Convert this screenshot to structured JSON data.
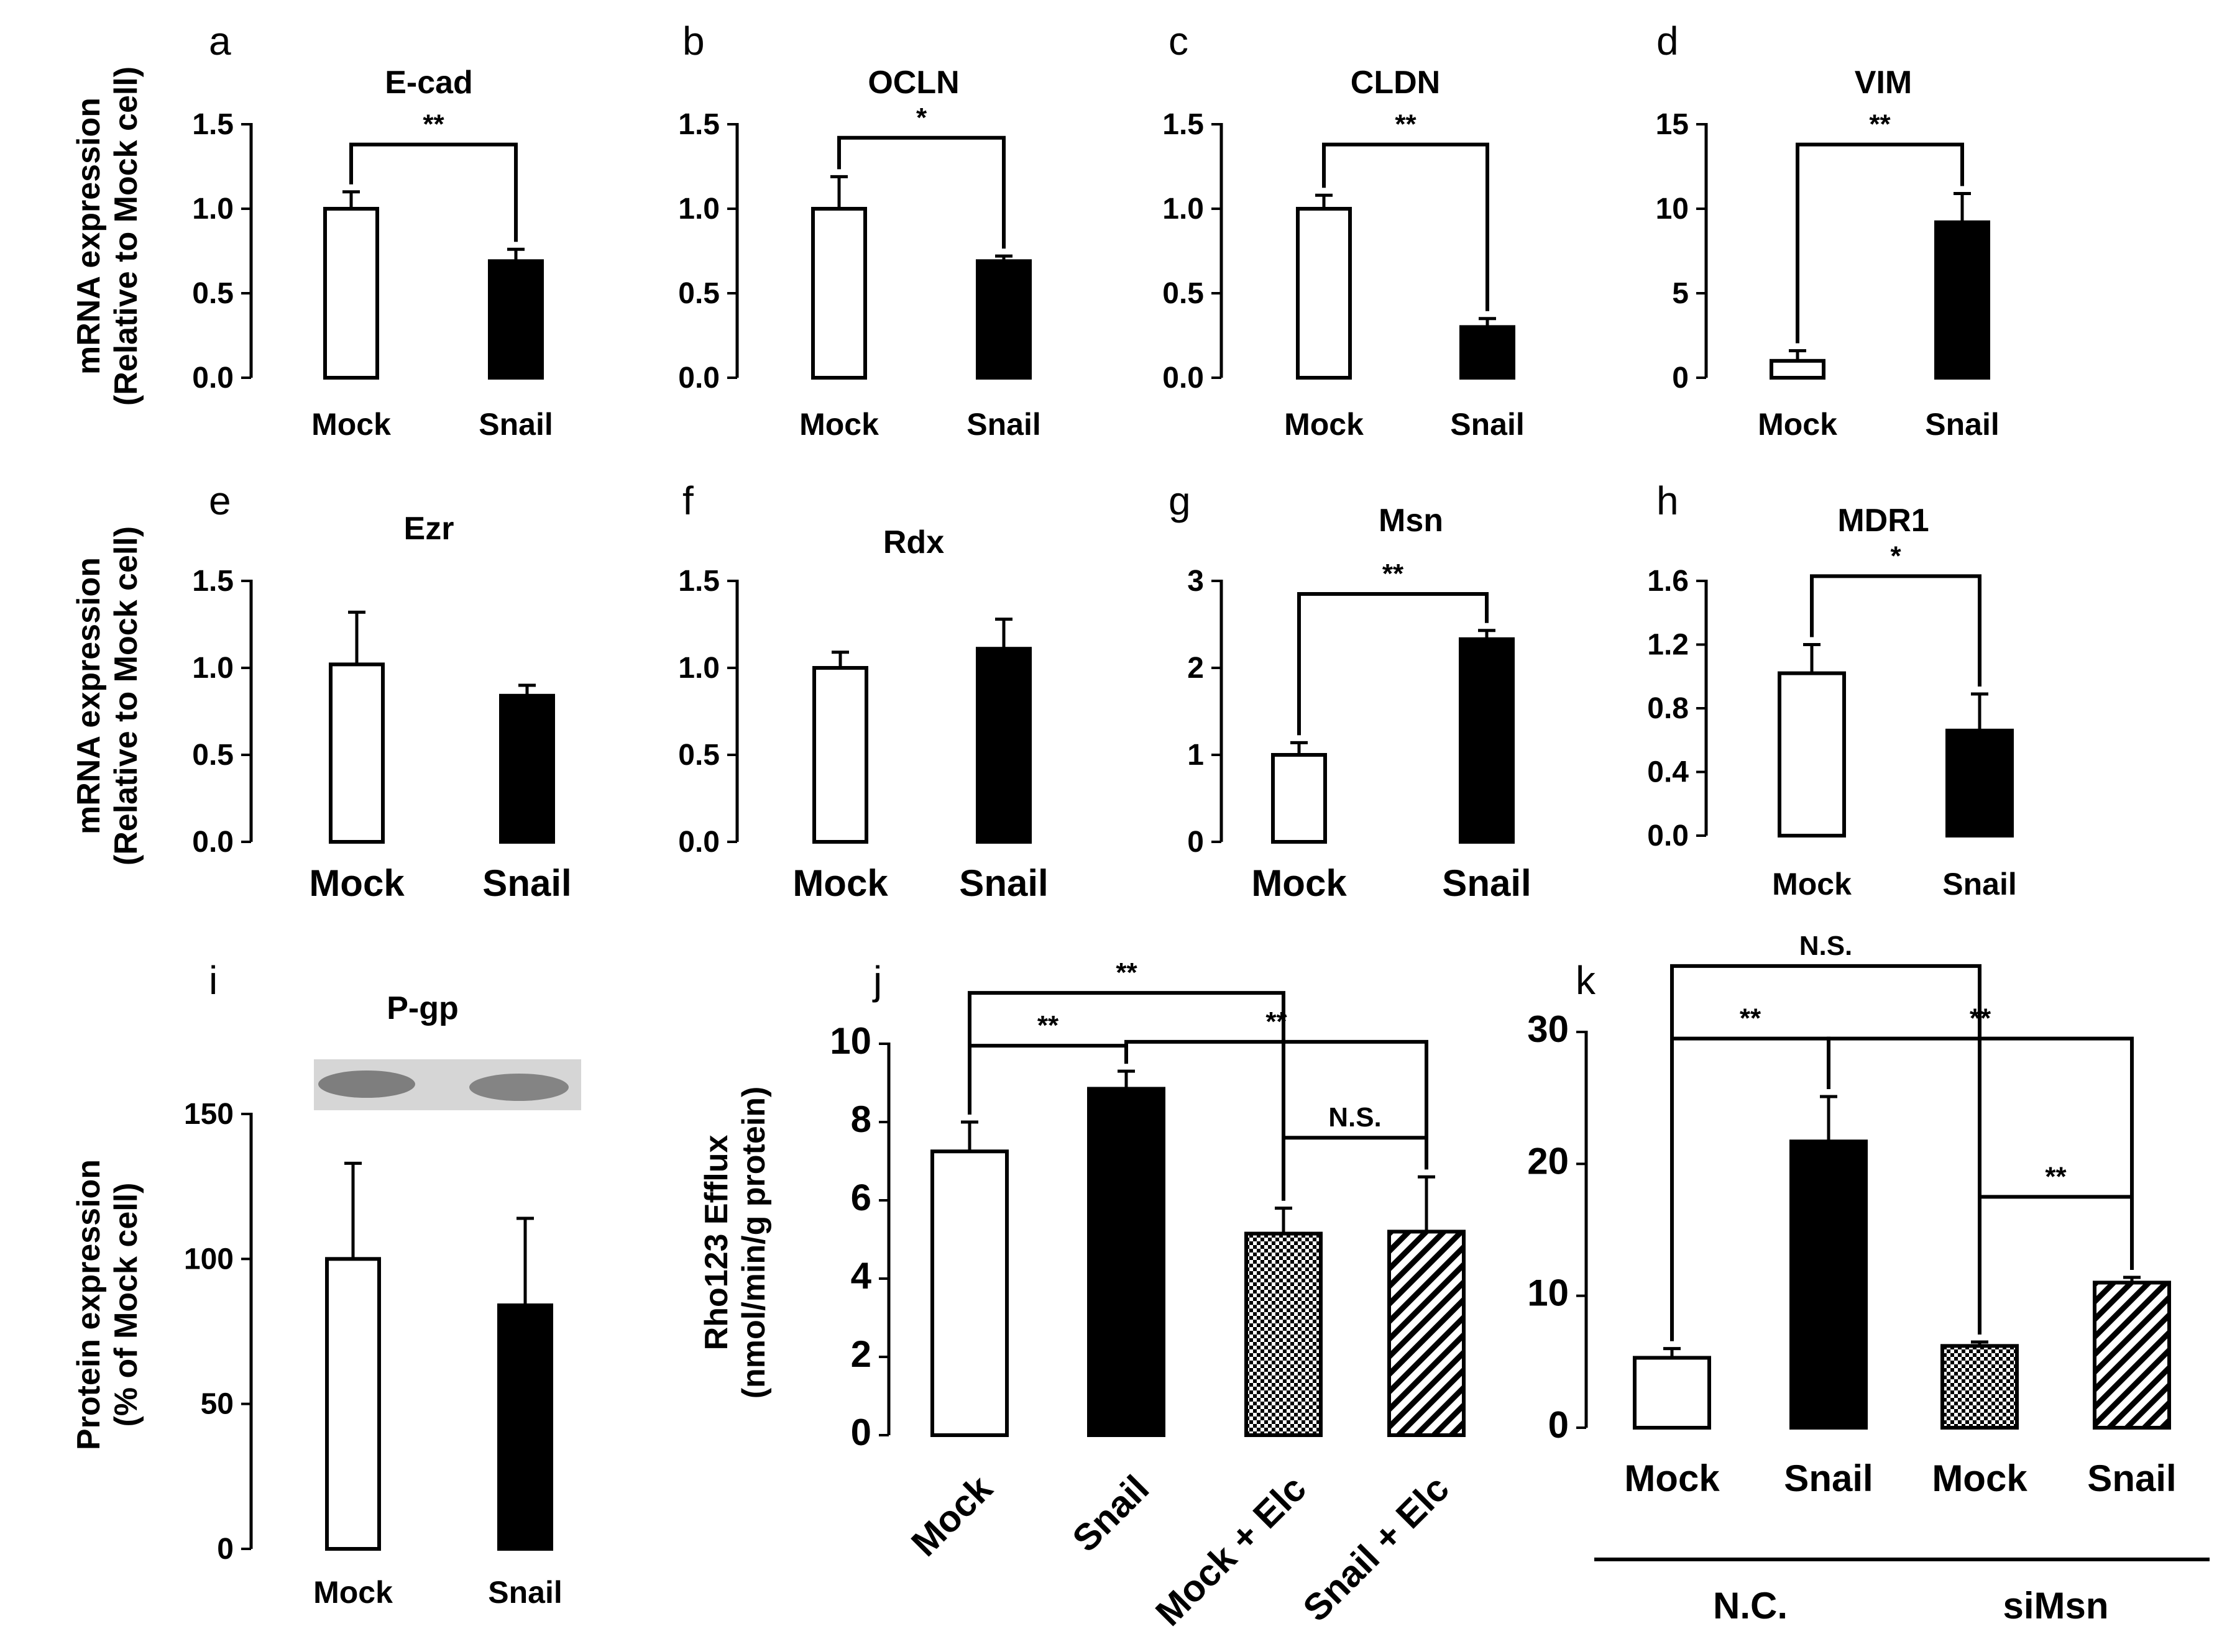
{
  "chart_data": [
    {
      "id": "a",
      "panel_label": "a",
      "type": "bar",
      "title": "E-cad",
      "ylabel": [
        "mRNA expression",
        "(Relative to Mock cell)"
      ],
      "yticks": [
        "0.0",
        "0.5",
        "1.0",
        "1.5"
      ],
      "ylim": [
        0,
        1.5
      ],
      "categories": [
        "Mock",
        "Snail"
      ],
      "fills": [
        "white",
        "black"
      ],
      "values": [
        1.0,
        0.69
      ],
      "errors": [
        0.1,
        0.07
      ],
      "significance": [
        {
          "from": 0,
          "to": 1,
          "label": "**",
          "y": 1.38
        }
      ]
    },
    {
      "id": "b",
      "panel_label": "b",
      "type": "bar",
      "title": "OCLN",
      "ylabel": null,
      "yticks": [
        "0.0",
        "0.5",
        "1.0",
        "1.5"
      ],
      "ylim": [
        0,
        1.5
      ],
      "categories": [
        "Mock",
        "Snail"
      ],
      "fills": [
        "white",
        "black"
      ],
      "values": [
        1.0,
        0.69
      ],
      "errors": [
        0.19,
        0.03
      ],
      "significance": [
        {
          "from": 0,
          "to": 1,
          "label": "*",
          "y": 1.42
        }
      ]
    },
    {
      "id": "c",
      "panel_label": "c",
      "type": "bar",
      "title": "CLDN",
      "ylabel": null,
      "yticks": [
        "0.0",
        "0.5",
        "1.0",
        "1.5"
      ],
      "ylim": [
        0,
        1.5
      ],
      "categories": [
        "Mock",
        "Snail"
      ],
      "fills": [
        "white",
        "black"
      ],
      "values": [
        1.0,
        0.3
      ],
      "errors": [
        0.08,
        0.05
      ],
      "significance": [
        {
          "from": 0,
          "to": 1,
          "label": "**",
          "y": 1.38
        }
      ]
    },
    {
      "id": "d",
      "panel_label": "d",
      "type": "bar",
      "title": "VIM",
      "ylabel": null,
      "yticks": [
        "0",
        "5",
        "10",
        "15"
      ],
      "ylim": [
        0,
        15
      ],
      "categories": [
        "Mock",
        "Snail"
      ],
      "fills": [
        "white",
        "black"
      ],
      "values": [
        1.0,
        9.2
      ],
      "errors": [
        0.6,
        1.7
      ],
      "significance": [
        {
          "from": 0,
          "to": 1,
          "label": "**",
          "y": 13.8
        }
      ]
    },
    {
      "id": "e",
      "panel_label": "e",
      "type": "bar",
      "title": "Ezr",
      "ylabel": [
        "mRNA expression",
        "(Relative to Mock cell)"
      ],
      "yticks": [
        "0.0",
        "0.5",
        "1.0",
        "1.5"
      ],
      "ylim": [
        0,
        1.5
      ],
      "categories": [
        "Mock",
        "Snail"
      ],
      "fills": [
        "white",
        "black"
      ],
      "values": [
        1.02,
        0.84
      ],
      "errors": [
        0.3,
        0.06
      ],
      "significance": []
    },
    {
      "id": "f",
      "panel_label": "f",
      "type": "bar",
      "title": "Rdx",
      "ylabel": null,
      "yticks": [
        "0.0",
        "0.5",
        "1.0",
        "1.5"
      ],
      "ylim": [
        0,
        1.5
      ],
      "categories": [
        "Mock",
        "Snail"
      ],
      "fills": [
        "white",
        "black"
      ],
      "values": [
        1.0,
        1.11
      ],
      "errors": [
        0.09,
        0.17
      ],
      "significance": []
    },
    {
      "id": "g",
      "panel_label": "g",
      "type": "bar",
      "title": "Msn",
      "ylabel": null,
      "yticks": [
        "0",
        "1",
        "2",
        "3"
      ],
      "ylim": [
        0,
        3
      ],
      "categories": [
        "Mock",
        "Snail"
      ],
      "fills": [
        "white",
        "black"
      ],
      "values": [
        1.0,
        2.33
      ],
      "errors": [
        0.14,
        0.1
      ],
      "significance": [
        {
          "from": 0,
          "to": 1,
          "label": "**",
          "y": 2.85
        }
      ]
    },
    {
      "id": "h",
      "panel_label": "h",
      "type": "bar",
      "title": "MDR1",
      "ylabel": null,
      "yticks": [
        "0.0",
        "0.4",
        "0.8",
        "1.2",
        "1.6"
      ],
      "ylim": [
        0,
        1.6
      ],
      "categories": [
        "Mock",
        "Snail"
      ],
      "fills": [
        "white",
        "black"
      ],
      "values": [
        1.02,
        0.66
      ],
      "errors": [
        0.18,
        0.23
      ],
      "significance": [
        {
          "from": 0,
          "to": 1,
          "label": "*",
          "y": 1.63
        }
      ]
    },
    {
      "id": "i",
      "panel_label": "i",
      "type": "bar",
      "title": "P-gp",
      "ylabel": [
        "Protein expression",
        "(% of Mock cell)"
      ],
      "yticks": [
        "0",
        "50",
        "100",
        "150"
      ],
      "ylim": [
        0,
        150
      ],
      "categories": [
        "Mock",
        "Snail"
      ],
      "fills": [
        "white",
        "black"
      ],
      "values": [
        100,
        84
      ],
      "errors": [
        33,
        30
      ],
      "significance": []
    },
    {
      "id": "j",
      "panel_label": "j",
      "type": "bar",
      "title": "",
      "ylabel": [
        "Rho123 Efflux",
        "(nmol/min/g protein)"
      ],
      "yticks": [
        "0",
        "2",
        "4",
        "6",
        "8",
        "10"
      ],
      "ylim": [
        0,
        10
      ],
      "categories": [
        "Mock",
        "Snail",
        "Mock + Elc",
        "Snail + Elc"
      ],
      "fills": [
        "white",
        "black",
        "checker",
        "hatch"
      ],
      "values": [
        7.25,
        8.85,
        5.15,
        5.2
      ],
      "errors": [
        0.75,
        0.45,
        0.65,
        1.4
      ],
      "significance": [
        {
          "from": 0,
          "to": 1,
          "label": "**",
          "y": 9.95
        },
        {
          "from": 1,
          "to": 3,
          "label": "**",
          "y": 10.05
        },
        {
          "from": 2,
          "to": 3,
          "label": "N.S.",
          "y": 7.6
        },
        {
          "from": 0,
          "to": 2,
          "label": "**",
          "y": 11.3
        }
      ]
    },
    {
      "id": "k",
      "panel_label": "k",
      "type": "bar",
      "title": "",
      "ylabel": null,
      "yticks": [
        "0",
        "10",
        "20",
        "30"
      ],
      "ylim": [
        0,
        30
      ],
      "categories": [
        "Mock",
        "Snail",
        "Mock",
        "Snail"
      ],
      "fills": [
        "white",
        "black",
        "checker",
        "hatch"
      ],
      "values": [
        5.3,
        21.7,
        6.2,
        11.0
      ],
      "errors": [
        0.7,
        3.4,
        0.3,
        0.4
      ],
      "groups": [
        {
          "label": "N.C.",
          "from": 0,
          "to": 1
        },
        {
          "label": "siMsn",
          "from": 2,
          "to": 3
        }
      ],
      "significance": [
        {
          "from": 0,
          "to": 1,
          "label": "**",
          "y": 29.5
        },
        {
          "from": 1,
          "to": 3,
          "label": "**",
          "y": 29.5
        },
        {
          "from": 2,
          "to": 3,
          "label": "**",
          "y": 17.5
        },
        {
          "from": 0,
          "to": 2,
          "label": "N.S.",
          "y": 35.0
        }
      ]
    }
  ]
}
